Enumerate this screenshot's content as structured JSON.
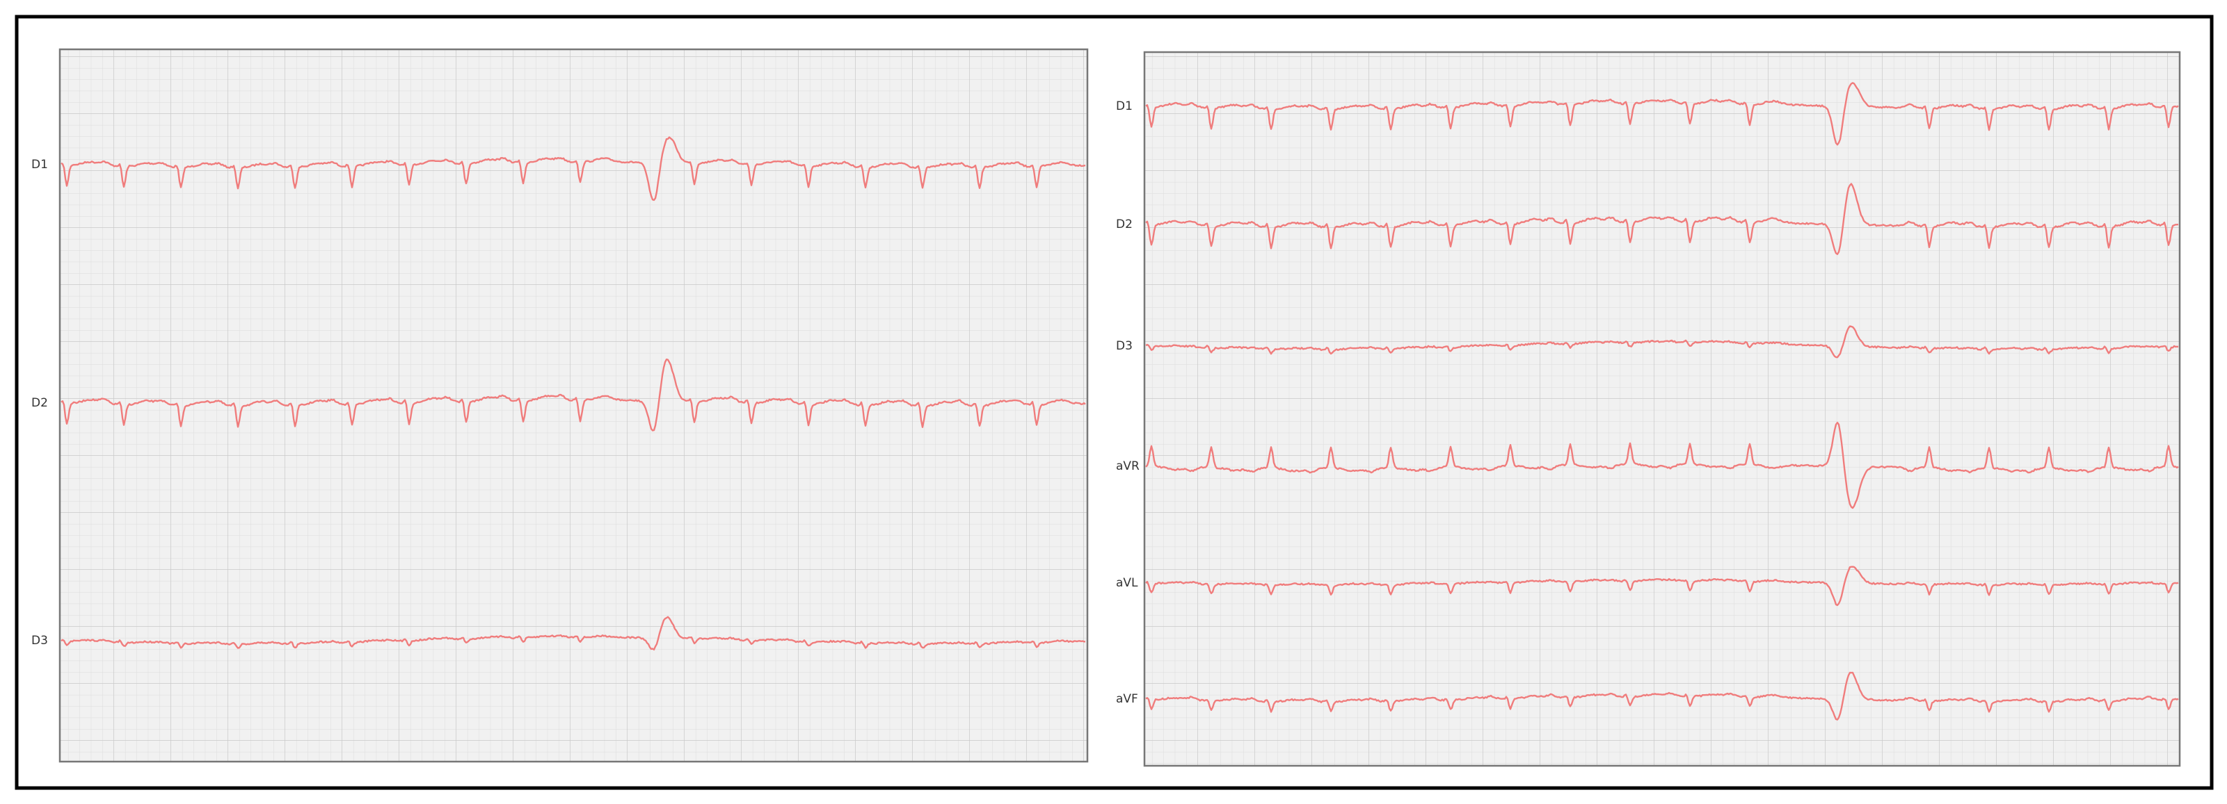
{
  "left_panel": {
    "leads": [
      "D1",
      "D2",
      "D3"
    ]
  },
  "right_panel": {
    "leads": [
      "D1",
      "D2",
      "D3",
      "aVR",
      "aVL",
      "aVF"
    ]
  }
}
